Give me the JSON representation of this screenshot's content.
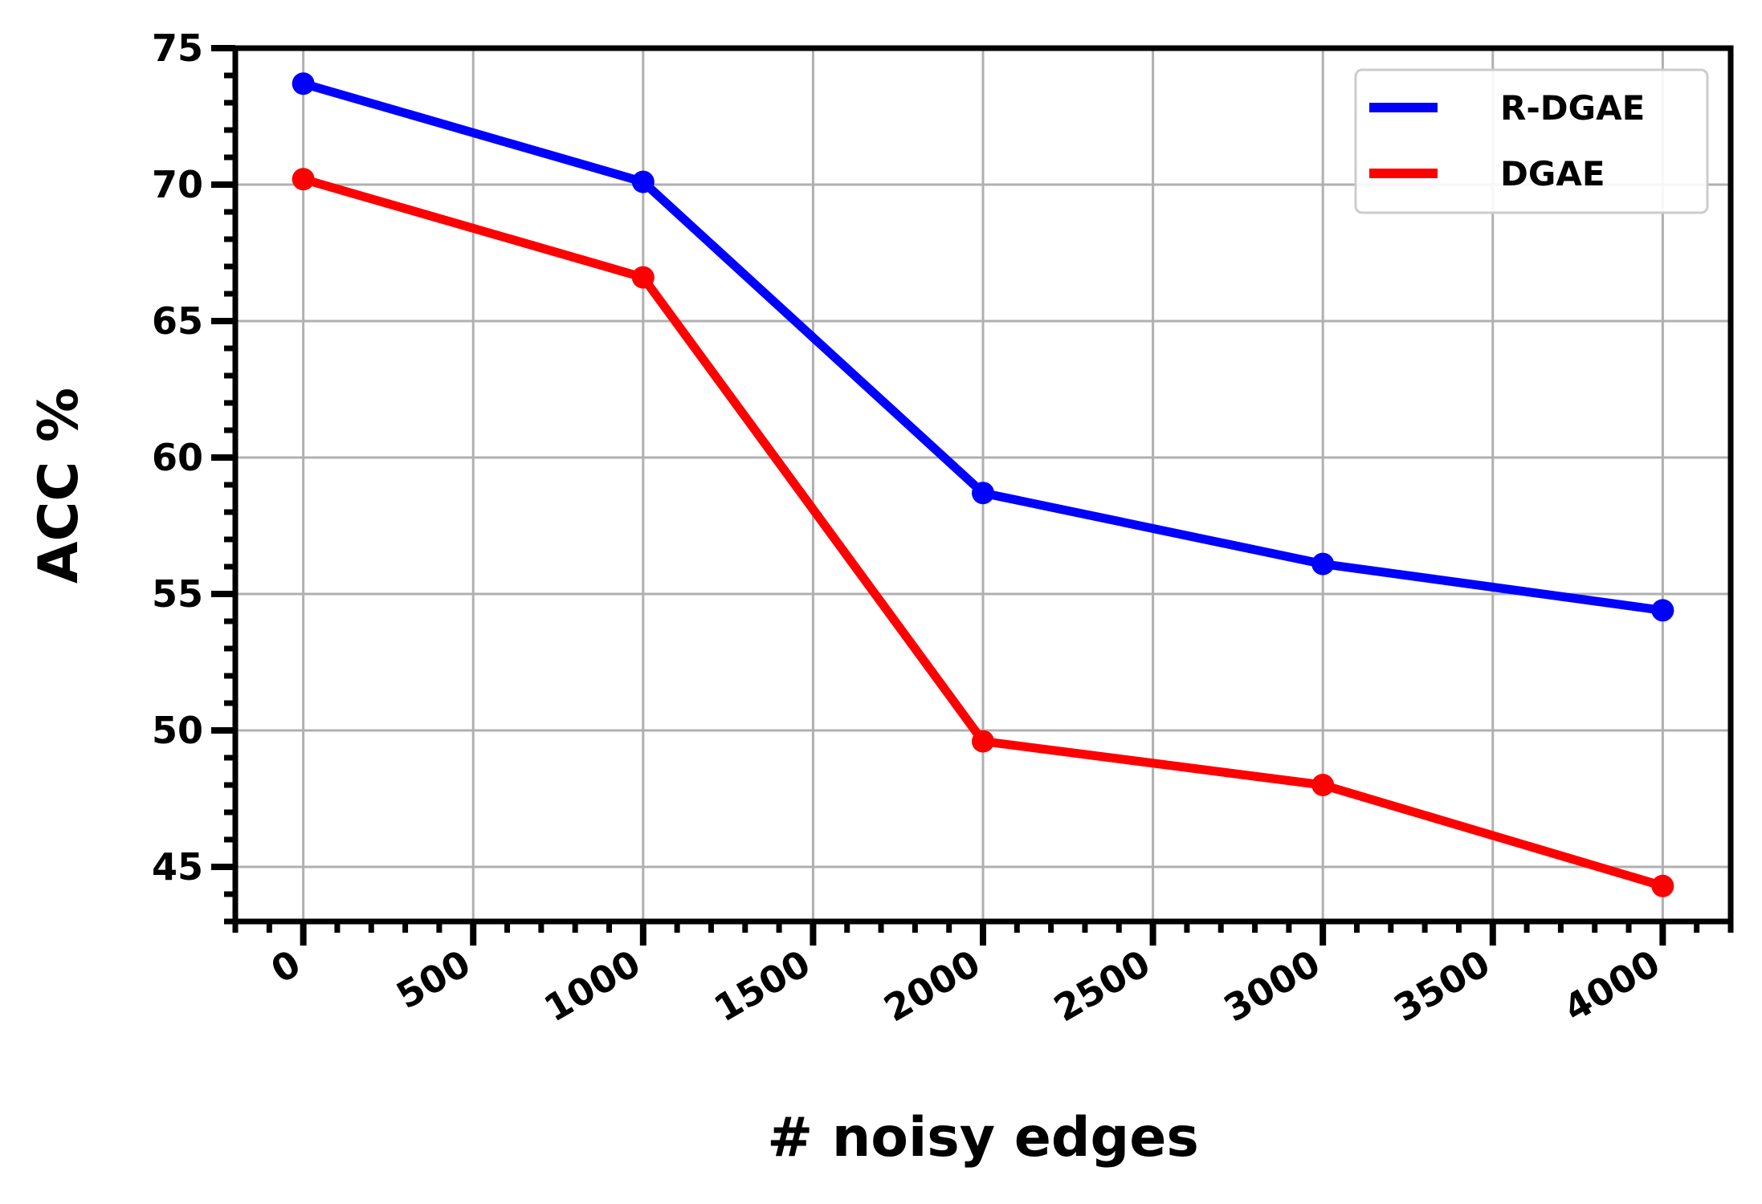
{
  "chart_data": {
    "type": "line",
    "title": "",
    "xlabel": "# noisy edges",
    "ylabel": "ACC %",
    "x": [
      0,
      1000,
      2000,
      3000,
      4000
    ],
    "series": [
      {
        "name": "R-DGAE",
        "color": "#0000ff",
        "values": [
          73.7,
          70.1,
          58.7,
          56.1,
          54.4
        ]
      },
      {
        "name": "DGAE",
        "color": "#ff0000",
        "values": [
          70.2,
          66.6,
          49.6,
          48.0,
          44.3
        ]
      }
    ],
    "xlim": [
      -200,
      4200
    ],
    "ylim": [
      43,
      75
    ],
    "xticks": [
      0,
      500,
      1000,
      1500,
      2000,
      2500,
      3000,
      3500,
      4000
    ],
    "xtick_labels": [
      "0",
      "500",
      "1000",
      "1500",
      "2000",
      "2500",
      "3000",
      "3500",
      "4000"
    ],
    "yticks": [
      45,
      50,
      55,
      60,
      65,
      70,
      75
    ],
    "ytick_labels": [
      "45",
      "50",
      "55",
      "60",
      "65",
      "70",
      "75"
    ],
    "grid": true,
    "legend": "top-right",
    "grid_color": "#b0b0b0",
    "axis_color": "#000000"
  }
}
